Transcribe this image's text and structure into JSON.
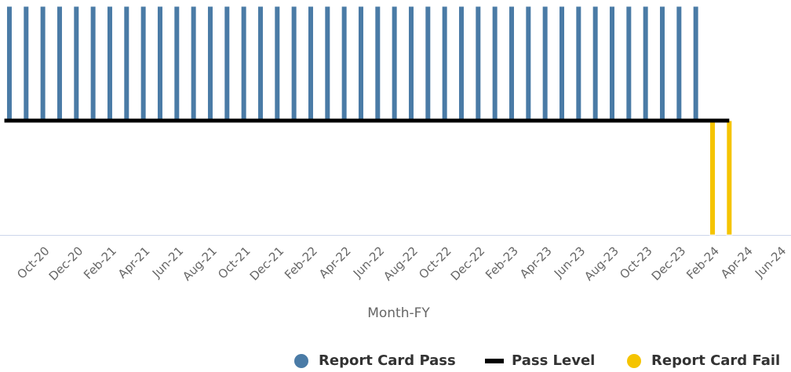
{
  "chart_data": {
    "type": "bar",
    "x_label": "Month-FY",
    "categories": [
      null,
      null,
      "Oct-20",
      null,
      "Dec-20",
      null,
      "Feb-21",
      null,
      "Apr-21",
      null,
      "Jun-21",
      null,
      "Aug-21",
      null,
      "Oct-21",
      null,
      "Dec-21",
      null,
      "Feb-22",
      null,
      "Apr-22",
      null,
      "Jun-22",
      null,
      "Aug-22",
      null,
      "Oct-22",
      null,
      "Dec-22",
      null,
      "Feb-23",
      null,
      "Apr-23",
      null,
      "Jun-23",
      null,
      "Aug-23",
      null,
      "Oct-23",
      null,
      "Dec-23",
      null,
      "Feb-24",
      null,
      "Apr-24",
      null,
      "Jun-24"
    ],
    "ylim": [
      -1,
      1
    ],
    "series": [
      {
        "name": "Report Card Pass",
        "type": "bar",
        "color": "#4a7ba6",
        "values": [
          1,
          1,
          1,
          1,
          1,
          1,
          1,
          1,
          1,
          1,
          1,
          1,
          1,
          1,
          1,
          1,
          1,
          1,
          1,
          1,
          1,
          1,
          1,
          1,
          1,
          1,
          1,
          1,
          1,
          1,
          1,
          1,
          1,
          1,
          1,
          1,
          1,
          1,
          1,
          1,
          1,
          1,
          null,
          null,
          null,
          null,
          null
        ]
      },
      {
        "name": "Pass Level",
        "type": "line",
        "color": "#000000",
        "values": [
          0,
          0,
          0,
          0,
          0,
          0,
          0,
          0,
          0,
          0,
          0,
          0,
          0,
          0,
          0,
          0,
          0,
          0,
          0,
          0,
          0,
          0,
          0,
          0,
          0,
          0,
          0,
          0,
          0,
          0,
          0,
          0,
          0,
          0,
          0,
          0,
          0,
          0,
          0,
          0,
          0,
          0,
          0,
          0,
          null,
          null,
          null
        ]
      },
      {
        "name": "Report Card Fail",
        "type": "bar",
        "color": "#f5c400",
        "values": [
          null,
          null,
          null,
          null,
          null,
          null,
          null,
          null,
          null,
          null,
          null,
          null,
          null,
          null,
          null,
          null,
          null,
          null,
          null,
          null,
          null,
          null,
          null,
          null,
          null,
          null,
          null,
          null,
          null,
          null,
          null,
          null,
          null,
          null,
          null,
          null,
          null,
          null,
          null,
          null,
          null,
          null,
          -1,
          -1,
          null,
          null,
          null
        ]
      }
    ]
  }
}
